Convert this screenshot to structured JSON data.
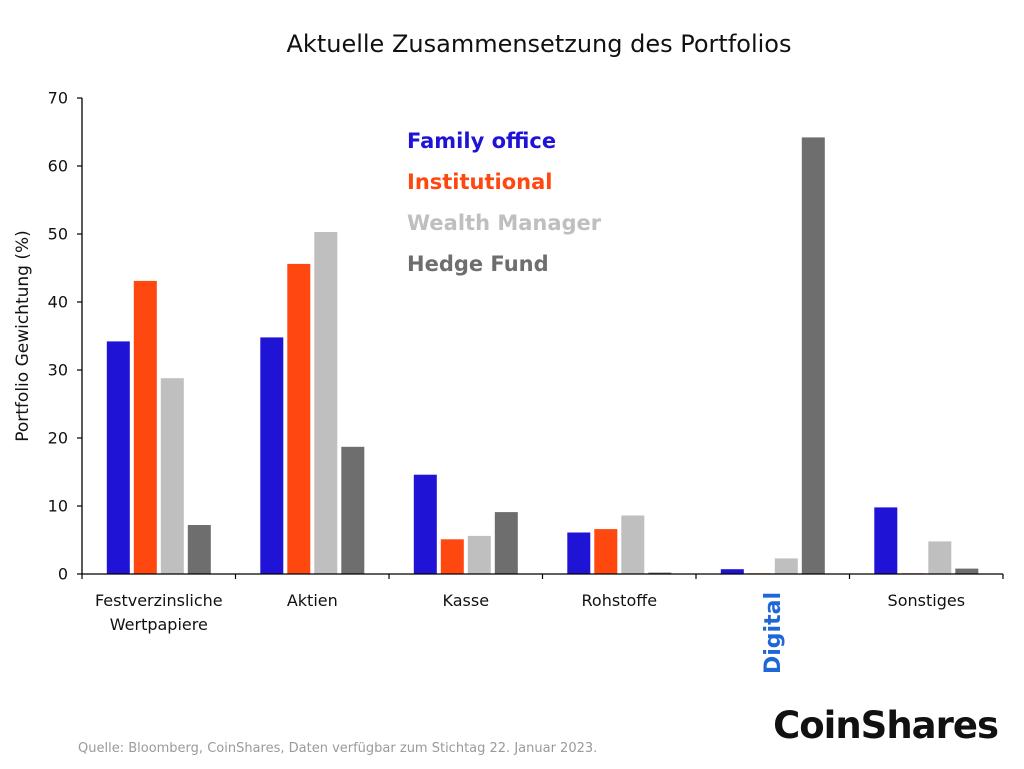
{
  "chart_data": {
    "type": "bar",
    "title": "Aktuelle Zusammensetzung des Portfolios",
    "ylabel": "Portfolio Gewichtung (%)",
    "xlabel": "",
    "ylim": [
      0,
      70
    ],
    "yticks": [
      "0",
      "10",
      "20",
      "30",
      "40",
      "50",
      "60",
      "70"
    ],
    "categories": [
      {
        "lines": [
          "Festverzinsliche",
          "Wertpapiere"
        ],
        "highlight": false
      },
      {
        "lines": [
          "Aktien"
        ],
        "highlight": false
      },
      {
        "lines": [
          "Kasse"
        ],
        "highlight": false
      },
      {
        "lines": [
          "Rohstoffe"
        ],
        "highlight": false
      },
      {
        "lines": [
          "Digital"
        ],
        "highlight": true
      },
      {
        "lines": [
          "Sonstiges"
        ],
        "highlight": false
      }
    ],
    "highlight_color": "#1f66d6",
    "series": [
      {
        "name": "Family office",
        "color": "#1f14d6",
        "values": [
          34.2,
          34.8,
          14.6,
          6.1,
          0.7,
          9.8
        ]
      },
      {
        "name": "Institutional",
        "color": "#ff4710",
        "values": [
          43.1,
          45.6,
          5.1,
          6.6,
          0.1,
          0.1
        ]
      },
      {
        "name": "Wealth Manager",
        "color": "#bfbfbf",
        "values": [
          28.8,
          50.3,
          5.6,
          8.6,
          2.3,
          4.8
        ]
      },
      {
        "name": "Hedge Fund",
        "color": "#6e6e6e",
        "values": [
          7.2,
          18.7,
          9.1,
          0.2,
          64.2,
          0.8
        ]
      }
    ],
    "grid": false,
    "legend_position": "top-center"
  },
  "footer": {
    "source": "Quelle: Bloomberg, CoinShares, Daten verfügbar zum Stichtag 22. Januar 2023.",
    "logo": "CoinShares"
  }
}
